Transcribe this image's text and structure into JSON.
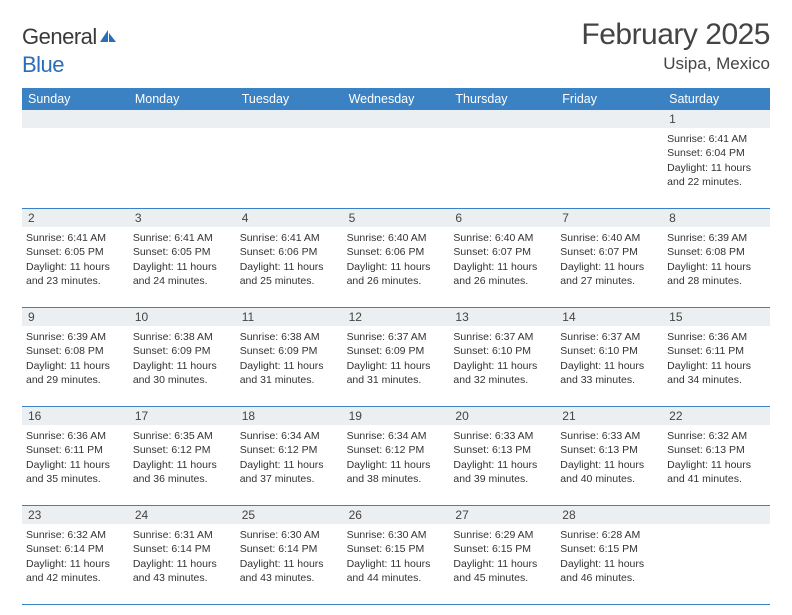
{
  "brand": {
    "part1": "General",
    "part2": "Blue"
  },
  "title": "February 2025",
  "location": "Usipa, Mexico",
  "dayNames": [
    "Sunday",
    "Monday",
    "Tuesday",
    "Wednesday",
    "Thursday",
    "Friday",
    "Saturday"
  ],
  "colors": {
    "headerBar": "#3b82c4",
    "dayStrip": "#eceff1",
    "text": "#333333",
    "logoBlue": "#2a6db8"
  },
  "weeks": [
    {
      "days": [
        {
          "n": "",
          "empty": true
        },
        {
          "n": "",
          "empty": true
        },
        {
          "n": "",
          "empty": true
        },
        {
          "n": "",
          "empty": true
        },
        {
          "n": "",
          "empty": true
        },
        {
          "n": "",
          "empty": true
        },
        {
          "n": "1",
          "sunrise": "Sunrise: 6:41 AM",
          "sunset": "Sunset: 6:04 PM",
          "daylight": "Daylight: 11 hours and 22 minutes."
        }
      ]
    },
    {
      "days": [
        {
          "n": "2",
          "sunrise": "Sunrise: 6:41 AM",
          "sunset": "Sunset: 6:05 PM",
          "daylight": "Daylight: 11 hours and 23 minutes."
        },
        {
          "n": "3",
          "sunrise": "Sunrise: 6:41 AM",
          "sunset": "Sunset: 6:05 PM",
          "daylight": "Daylight: 11 hours and 24 minutes."
        },
        {
          "n": "4",
          "sunrise": "Sunrise: 6:41 AM",
          "sunset": "Sunset: 6:06 PM",
          "daylight": "Daylight: 11 hours and 25 minutes."
        },
        {
          "n": "5",
          "sunrise": "Sunrise: 6:40 AM",
          "sunset": "Sunset: 6:06 PM",
          "daylight": "Daylight: 11 hours and 26 minutes."
        },
        {
          "n": "6",
          "sunrise": "Sunrise: 6:40 AM",
          "sunset": "Sunset: 6:07 PM",
          "daylight": "Daylight: 11 hours and 26 minutes."
        },
        {
          "n": "7",
          "sunrise": "Sunrise: 6:40 AM",
          "sunset": "Sunset: 6:07 PM",
          "daylight": "Daylight: 11 hours and 27 minutes."
        },
        {
          "n": "8",
          "sunrise": "Sunrise: 6:39 AM",
          "sunset": "Sunset: 6:08 PM",
          "daylight": "Daylight: 11 hours and 28 minutes."
        }
      ]
    },
    {
      "days": [
        {
          "n": "9",
          "sunrise": "Sunrise: 6:39 AM",
          "sunset": "Sunset: 6:08 PM",
          "daylight": "Daylight: 11 hours and 29 minutes."
        },
        {
          "n": "10",
          "sunrise": "Sunrise: 6:38 AM",
          "sunset": "Sunset: 6:09 PM",
          "daylight": "Daylight: 11 hours and 30 minutes."
        },
        {
          "n": "11",
          "sunrise": "Sunrise: 6:38 AM",
          "sunset": "Sunset: 6:09 PM",
          "daylight": "Daylight: 11 hours and 31 minutes."
        },
        {
          "n": "12",
          "sunrise": "Sunrise: 6:37 AM",
          "sunset": "Sunset: 6:09 PM",
          "daylight": "Daylight: 11 hours and 31 minutes."
        },
        {
          "n": "13",
          "sunrise": "Sunrise: 6:37 AM",
          "sunset": "Sunset: 6:10 PM",
          "daylight": "Daylight: 11 hours and 32 minutes."
        },
        {
          "n": "14",
          "sunrise": "Sunrise: 6:37 AM",
          "sunset": "Sunset: 6:10 PM",
          "daylight": "Daylight: 11 hours and 33 minutes."
        },
        {
          "n": "15",
          "sunrise": "Sunrise: 6:36 AM",
          "sunset": "Sunset: 6:11 PM",
          "daylight": "Daylight: 11 hours and 34 minutes."
        }
      ]
    },
    {
      "days": [
        {
          "n": "16",
          "sunrise": "Sunrise: 6:36 AM",
          "sunset": "Sunset: 6:11 PM",
          "daylight": "Daylight: 11 hours and 35 minutes."
        },
        {
          "n": "17",
          "sunrise": "Sunrise: 6:35 AM",
          "sunset": "Sunset: 6:12 PM",
          "daylight": "Daylight: 11 hours and 36 minutes."
        },
        {
          "n": "18",
          "sunrise": "Sunrise: 6:34 AM",
          "sunset": "Sunset: 6:12 PM",
          "daylight": "Daylight: 11 hours and 37 minutes."
        },
        {
          "n": "19",
          "sunrise": "Sunrise: 6:34 AM",
          "sunset": "Sunset: 6:12 PM",
          "daylight": "Daylight: 11 hours and 38 minutes."
        },
        {
          "n": "20",
          "sunrise": "Sunrise: 6:33 AM",
          "sunset": "Sunset: 6:13 PM",
          "daylight": "Daylight: 11 hours and 39 minutes."
        },
        {
          "n": "21",
          "sunrise": "Sunrise: 6:33 AM",
          "sunset": "Sunset: 6:13 PM",
          "daylight": "Daylight: 11 hours and 40 minutes."
        },
        {
          "n": "22",
          "sunrise": "Sunrise: 6:32 AM",
          "sunset": "Sunset: 6:13 PM",
          "daylight": "Daylight: 11 hours and 41 minutes."
        }
      ]
    },
    {
      "days": [
        {
          "n": "23",
          "sunrise": "Sunrise: 6:32 AM",
          "sunset": "Sunset: 6:14 PM",
          "daylight": "Daylight: 11 hours and 42 minutes."
        },
        {
          "n": "24",
          "sunrise": "Sunrise: 6:31 AM",
          "sunset": "Sunset: 6:14 PM",
          "daylight": "Daylight: 11 hours and 43 minutes."
        },
        {
          "n": "25",
          "sunrise": "Sunrise: 6:30 AM",
          "sunset": "Sunset: 6:14 PM",
          "daylight": "Daylight: 11 hours and 43 minutes."
        },
        {
          "n": "26",
          "sunrise": "Sunrise: 6:30 AM",
          "sunset": "Sunset: 6:15 PM",
          "daylight": "Daylight: 11 hours and 44 minutes."
        },
        {
          "n": "27",
          "sunrise": "Sunrise: 6:29 AM",
          "sunset": "Sunset: 6:15 PM",
          "daylight": "Daylight: 11 hours and 45 minutes."
        },
        {
          "n": "28",
          "sunrise": "Sunrise: 6:28 AM",
          "sunset": "Sunset: 6:15 PM",
          "daylight": "Daylight: 11 hours and 46 minutes."
        },
        {
          "n": "",
          "empty": true
        }
      ]
    }
  ]
}
